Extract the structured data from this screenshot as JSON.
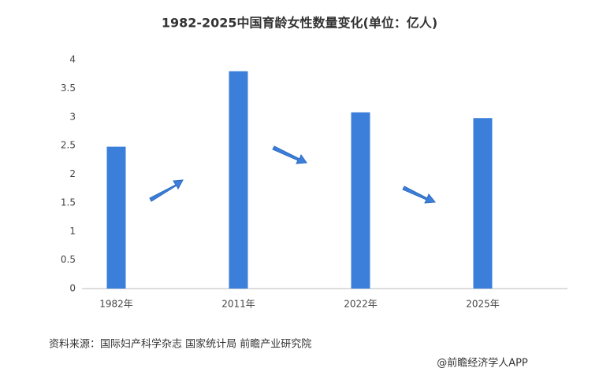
{
  "chart_data": {
    "type": "bar",
    "title": "1982-2025中国育龄女性数量变化(单位：亿人)",
    "categories": [
      "1982年",
      "2011年",
      "2022年",
      "2025年"
    ],
    "values": [
      2.48,
      3.8,
      3.08,
      2.98
    ],
    "color": "#3b7fdb",
    "ylim": [
      0,
      4
    ],
    "yticks": [
      0,
      0.5,
      1,
      1.5,
      2,
      2.5,
      3,
      3.5,
      4
    ],
    "grid": false,
    "source": "资料来源：国际妇产科学杂志 国家统计局 前瞻产业研究院",
    "credit": "@前瞻经济学人APP"
  }
}
